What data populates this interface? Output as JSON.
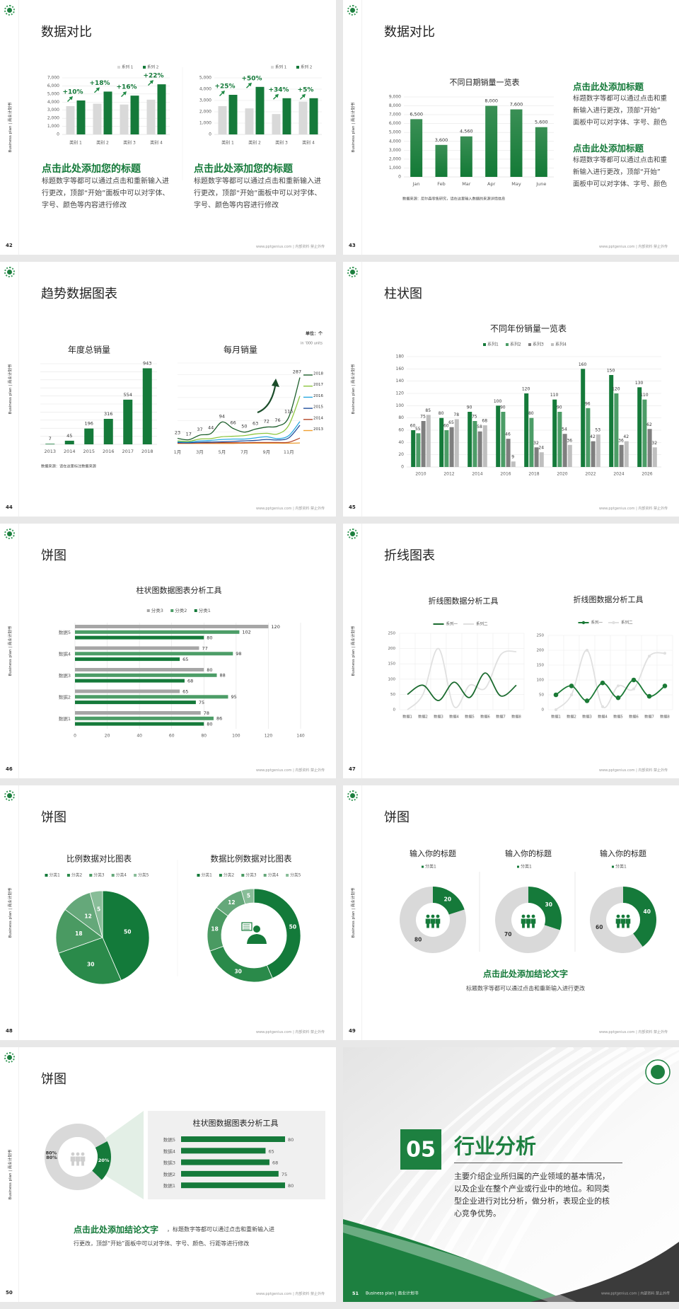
{
  "brand": {
    "sidebar_text": "Business plan | 商业计划书",
    "footer": "www.pptgenius.com | 内部资料 禁止外传"
  },
  "colors": {
    "green": "#157a3a",
    "green_mid": "#4c9d67",
    "gray_light": "#d9d9d9",
    "gray_dark": "#7f7f7f",
    "panel": "#f0f0f0",
    "dark": "#3b3b3b"
  },
  "slides": {
    "s42": {
      "page": "42",
      "title": "数据对比",
      "blocks": [
        {
          "heading": "点击此处添加您的标题",
          "lines": [
            "标题数字等都可以通过点击和重新输入进",
            "行更改，顶部“开始”面板中可以对字体、",
            "字号、颜色等内容进行修改"
          ]
        },
        {
          "heading": "点击此处添加您的标题",
          "lines": [
            "标题数字等都可以通过点击和重新输入进",
            "行更改，顶部“开始”面板中可以对字体、",
            "字号、颜色等内容进行修改"
          ]
        }
      ]
    },
    "s43": {
      "page": "43",
      "title": "数据对比",
      "source": "数据来源：尼尔森零售研究，请在这里输入数据的来源详情信息",
      "blocks": [
        {
          "heading": "点击此处添加标题",
          "lines": [
            "标题数字等都可以通过点击和重",
            "新输入进行更改，顶部“开始”",
            "面板中可以对字体、字号、颜色"
          ]
        },
        {
          "heading": "点击此处添加标题",
          "lines": [
            "标题数字等都可以通过点击和重",
            "新输入进行更改，顶部“开始”",
            "面板中可以对字体、字号、颜色"
          ]
        }
      ]
    },
    "s44": {
      "page": "44",
      "title": "趋势数据图表",
      "source": "数据来源：请在这里标注数据来源",
      "unit": "单位：个",
      "unit_en": "in '000 units"
    },
    "s45": {
      "page": "45",
      "title": "柱状图"
    },
    "s46": {
      "page": "46",
      "title": "饼图"
    },
    "s47": {
      "page": "47",
      "title": "折线图表"
    },
    "s48": {
      "page": "48",
      "title": "饼图"
    },
    "s49": {
      "page": "49",
      "title": "饼图",
      "conclusion": "点击此处添加结论文字",
      "conclusion_body": "标题数字等都可以通过点击和重新输入进行更改"
    },
    "s50": {
      "page": "50",
      "title": "饼图",
      "conclusion": "点击此处添加结论文字",
      "conclusion_tail": "，标题数字等都可以通过点击和重新输入进",
      "conclusion_line2": "行更改，顶部“开始”面板中可以对字体、字号、颜色、行距等进行修改"
    },
    "s51": {
      "page": "51",
      "number": "05",
      "title": "行业分析",
      "footer_left": "Business plan | 商业计划书",
      "lines": [
        "主要介绍企业所归属的产业领域的基本情况，",
        "以及企业在整个产业或行业中的地位。和同类",
        "型企业进行对比分析，做分析，表现企业的核",
        "心竞争优势。"
      ]
    }
  },
  "chart_data": [
    {
      "type": "bar",
      "title": "",
      "categories": [
        "类别 1",
        "类别 2",
        "类别 3",
        "类别 4"
      ],
      "ylim": [
        0,
        7000
      ],
      "ystep": 1000,
      "series": [
        {
          "name": "系列 1",
          "color": "#d9d9d9",
          "values": [
            3500,
            3800,
            3700,
            4300
          ]
        },
        {
          "name": "系列 2",
          "color": "#157a3a",
          "values": [
            4200,
            5300,
            4800,
            6200
          ]
        }
      ],
      "annotations": [
        "+10%",
        "+18%",
        "+16%",
        "+22%"
      ],
      "legend": "top-right",
      "grid": true
    },
    {
      "type": "bar",
      "title": "",
      "categories": [
        "类别 1",
        "类别 2",
        "类别 3",
        "类别 4"
      ],
      "ylim": [
        0,
        5000
      ],
      "ystep": 1000,
      "series": [
        {
          "name": "系列 1",
          "color": "#d9d9d9",
          "values": [
            2500,
            2300,
            1800,
            2900
          ]
        },
        {
          "name": "系列 2",
          "color": "#157a3a",
          "values": [
            3500,
            4200,
            3200,
            3200
          ]
        }
      ],
      "annotations": [
        "+25%",
        "+50%",
        "+34%",
        "+5%"
      ],
      "legend": "top-right",
      "grid": true
    },
    {
      "type": "bar",
      "title": "不同日期销量一览表",
      "categories": [
        "Jan",
        "Feb",
        "Mar",
        "Apr",
        "May",
        "June"
      ],
      "ylim": [
        0,
        9000
      ],
      "ystep": 1000,
      "series": [
        {
          "color": "#157a3a",
          "values": [
            6500,
            3600,
            4560,
            8000,
            7600,
            5600
          ]
        }
      ],
      "data_labels": [
        "6,500",
        "3,600",
        "4,560",
        "8,000",
        "7,600",
        "5,600"
      ],
      "grid": true
    },
    {
      "type": "bar",
      "title": "年度总销量",
      "categories": [
        "2013",
        "2014",
        "2015",
        "2016",
        "2017",
        "2018"
      ],
      "ylim": [
        0,
        1000
      ],
      "ystep": 100,
      "series": [
        {
          "color": "#157a3a",
          "values": [
            7,
            45,
            196,
            316,
            554,
            943
          ]
        }
      ],
      "grid": true
    },
    {
      "type": "line",
      "title": "每月销量",
      "xticks": [
        "1月",
        "3月",
        "5月",
        "7月",
        "9月",
        "11月"
      ],
      "ylim": [
        0,
        350
      ],
      "ystep": 50,
      "legend": "right",
      "series": [
        {
          "name": "2018",
          "color": "#1b5e2a",
          "values": [
            23,
            17,
            37,
            44,
            94,
            66,
            50,
            63,
            72,
            76,
            115,
            287
          ],
          "labeled": true
        },
        {
          "name": "2017",
          "color": "#8cc63f",
          "values": [
            12,
            10,
            20,
            22,
            30,
            32,
            35,
            42,
            45,
            42,
            80,
            207
          ]
        },
        {
          "name": "2016",
          "color": "#29a8e0",
          "values": [
            8,
            7,
            12,
            14,
            18,
            20,
            20,
            25,
            30,
            22,
            35,
            96
          ]
        },
        {
          "name": "2015",
          "color": "#1f4e9c",
          "values": [
            5,
            4,
            6,
            7,
            8,
            10,
            12,
            14,
            18,
            16,
            25,
            80
          ]
        },
        {
          "name": "2014",
          "color": "#b5472a",
          "values": [
            2,
            2,
            3,
            3,
            4,
            4,
            4,
            5,
            5,
            5,
            6,
            24
          ]
        },
        {
          "name": "2013",
          "color": "#f0a030",
          "values": [
            1,
            1,
            1,
            1,
            1,
            1,
            2,
            2,
            2,
            2,
            2,
            3
          ]
        }
      ]
    },
    {
      "type": "bar",
      "title": "不同年份销量一览表",
      "categories": [
        "2010",
        "2012",
        "2014",
        "2016",
        "2018",
        "2020",
        "2022",
        "2024",
        "2026"
      ],
      "ylim": [
        0,
        180
      ],
      "ystep": 20,
      "legend": "top",
      "grid": true,
      "series": [
        {
          "name": "系列1",
          "color": "#157a3a",
          "values": [
            60,
            80,
            90,
            100,
            120,
            110,
            160,
            150,
            130
          ]
        },
        {
          "name": "系列2",
          "color": "#4c9d67",
          "values": [
            55,
            60,
            75,
            90,
            80,
            90,
            96,
            120,
            110
          ]
        },
        {
          "name": "系列3",
          "color": "#7f7f7f",
          "values": [
            75,
            65,
            58,
            46,
            32,
            54,
            42,
            36,
            62
          ]
        },
        {
          "name": "系列4",
          "color": "#bfbfbf",
          "values": [
            85,
            78,
            68,
            9,
            24,
            36,
            53,
            42,
            32
          ]
        }
      ]
    },
    {
      "type": "bar",
      "orientation": "horizontal",
      "title": "柱状图数据图表分析工具",
      "categories": [
        "数据5",
        "数据4",
        "数据3",
        "数据2",
        "数据1"
      ],
      "xlim": [
        0,
        140
      ],
      "xstep": 20,
      "legend": "top",
      "grid": true,
      "series": [
        {
          "name": "分类3",
          "color": "#a6a6a6",
          "values": [
            120,
            77,
            80,
            65,
            78
          ]
        },
        {
          "name": "分类2",
          "color": "#4c9d67",
          "values": [
            102,
            98,
            88,
            95,
            86
          ]
        },
        {
          "name": "分类1",
          "color": "#157a3a",
          "values": [
            80,
            65,
            68,
            75,
            80
          ]
        }
      ]
    },
    {
      "type": "line",
      "title": "折线图数据分析工具",
      "categories": [
        "数据1",
        "数据2",
        "数据3",
        "数据4",
        "数据5",
        "数据6",
        "数据7",
        "数据8"
      ],
      "ylim": [
        0,
        250
      ],
      "ystep": 50,
      "legend": "top",
      "grid": true,
      "markers": false,
      "series": [
        {
          "name": "系列一",
          "color": "#1b6b2f",
          "values": [
            50,
            80,
            30,
            90,
            40,
            120,
            45,
            80
          ]
        },
        {
          "name": "系列二",
          "color": "#e0e0e0",
          "values": [
            0,
            50,
            200,
            10,
            80,
            70,
            180,
            190
          ]
        }
      ]
    },
    {
      "type": "line",
      "title": "折线图数据分析工具",
      "categories": [
        "数据1",
        "数据2",
        "数据3",
        "数据4",
        "数据5",
        "数据6",
        "数据7",
        "数据8"
      ],
      "ylim": [
        0,
        250
      ],
      "ystep": 50,
      "legend": "top",
      "grid": true,
      "markers": true,
      "series": [
        {
          "name": "系列一",
          "color": "#1b7a36",
          "values": [
            50,
            80,
            30,
            90,
            40,
            100,
            45,
            80
          ]
        },
        {
          "name": "系列二",
          "color": "#e0e0e0",
          "values": [
            0,
            50,
            200,
            10,
            80,
            70,
            180,
            190
          ]
        }
      ]
    },
    {
      "type": "pie",
      "title": "比例数据对比图表",
      "labels": [
        "分类1",
        "分类2",
        "分类3",
        "分类4",
        "分类5"
      ],
      "values": [
        50,
        30,
        18,
        12,
        5
      ],
      "colors": [
        "#137a3a",
        "#2a8a4a",
        "#4a9a62",
        "#65a87a",
        "#88bd98"
      ],
      "legend": "top"
    },
    {
      "type": "pie",
      "donut": true,
      "title": "数据比例数据对比图表",
      "labels": [
        "分类1",
        "分类2",
        "分类3",
        "分类4",
        "分类5"
      ],
      "values": [
        50,
        30,
        18,
        12,
        5
      ],
      "colors": [
        "#137a3a",
        "#2a8a4a",
        "#4a9a62",
        "#65a87a",
        "#88bd98"
      ],
      "legend": "top"
    },
    {
      "type": "pie",
      "donut": true,
      "title": "输入你的标题",
      "legend_label": "分类1",
      "values": [
        20,
        80
      ],
      "colors": [
        "#157a3a",
        "#d9d9d9"
      ]
    },
    {
      "type": "pie",
      "donut": true,
      "title": "输入你的标题",
      "legend_label": "分类1",
      "values": [
        30,
        70
      ],
      "colors": [
        "#157a3a",
        "#d9d9d9"
      ]
    },
    {
      "type": "pie",
      "donut": true,
      "title": "输入你的标题",
      "legend_label": "分类1",
      "values": [
        40,
        60
      ],
      "colors": [
        "#157a3a",
        "#d9d9d9"
      ]
    },
    {
      "type": "pie",
      "donut": true,
      "values": [
        20,
        80
      ],
      "data_labels": [
        "20%",
        "80%"
      ],
      "colors": [
        "#157a3a",
        "#d9d9d9"
      ]
    },
    {
      "type": "bar",
      "orientation": "horizontal",
      "title": "柱状图数据图表分析工具",
      "categories": [
        "数据5",
        "数据4",
        "数据3",
        "数据2",
        "数据1"
      ],
      "xlim": [
        0,
        80
      ],
      "series": [
        {
          "color": "#157a3a",
          "values": [
            80,
            65,
            68,
            75,
            80
          ]
        }
      ]
    }
  ]
}
